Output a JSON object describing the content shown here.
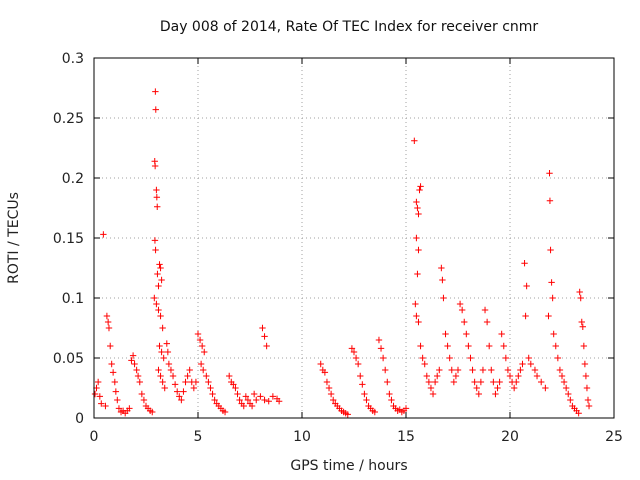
{
  "chart_data": {
    "type": "scatter",
    "title": "Day 008 of 2014, Rate Of TEC Index for receiver cnmr",
    "xlabel": "GPS time / hours",
    "ylabel": "ROTI / TECUs",
    "xlim": [
      0,
      25
    ],
    "ylim": [
      0,
      0.3
    ],
    "xticks": [
      0,
      5,
      10,
      15,
      20,
      25
    ],
    "xtick_labels": [
      "0",
      "5",
      "10",
      "15",
      "20",
      "25"
    ],
    "yticks": [
      0,
      0.05,
      0.1,
      0.15,
      0.2,
      0.25,
      0.3
    ],
    "ytick_labels": [
      "0",
      "0.05",
      "0.1",
      "0.15",
      "0.2",
      "0.25",
      "0.3"
    ],
    "grid": true,
    "marker": "+",
    "color": "#ff0000",
    "series": [
      {
        "name": "ROTI",
        "points": [
          [
            0.05,
            0.02
          ],
          [
            0.12,
            0.025
          ],
          [
            0.2,
            0.03
          ],
          [
            0.28,
            0.018
          ],
          [
            0.35,
            0.012
          ],
          [
            0.45,
            0.153
          ],
          [
            0.55,
            0.01
          ],
          [
            0.62,
            0.085
          ],
          [
            0.68,
            0.08
          ],
          [
            0.72,
            0.075
          ],
          [
            0.78,
            0.06
          ],
          [
            0.85,
            0.045
          ],
          [
            0.92,
            0.038
          ],
          [
            1.0,
            0.03
          ],
          [
            1.05,
            0.022
          ],
          [
            1.12,
            0.015
          ],
          [
            1.2,
            0.008
          ],
          [
            1.3,
            0.005
          ],
          [
            1.4,
            0.006
          ],
          [
            1.5,
            0.004
          ],
          [
            1.6,
            0.006
          ],
          [
            1.7,
            0.008
          ],
          [
            1.8,
            0.048
          ],
          [
            1.88,
            0.052
          ],
          [
            1.95,
            0.045
          ],
          [
            2.05,
            0.04
          ],
          [
            2.12,
            0.035
          ],
          [
            2.2,
            0.03
          ],
          [
            2.3,
            0.02
          ],
          [
            2.4,
            0.015
          ],
          [
            2.5,
            0.01
          ],
          [
            2.6,
            0.008
          ],
          [
            2.7,
            0.006
          ],
          [
            2.8,
            0.005
          ],
          [
            2.95,
            0.272
          ],
          [
            2.97,
            0.257
          ],
          [
            2.92,
            0.214
          ],
          [
            2.94,
            0.21
          ],
          [
            3.0,
            0.19
          ],
          [
            3.02,
            0.184
          ],
          [
            3.04,
            0.176
          ],
          [
            2.93,
            0.148
          ],
          [
            2.96,
            0.14
          ],
          [
            3.05,
            0.12
          ],
          [
            3.1,
            0.11
          ],
          [
            3.15,
            0.128
          ],
          [
            3.2,
            0.125
          ],
          [
            3.25,
            0.115
          ],
          [
            2.9,
            0.1
          ],
          [
            3.0,
            0.095
          ],
          [
            3.1,
            0.09
          ],
          [
            3.2,
            0.085
          ],
          [
            3.3,
            0.075
          ],
          [
            3.15,
            0.06
          ],
          [
            3.25,
            0.055
          ],
          [
            3.35,
            0.05
          ],
          [
            3.1,
            0.04
          ],
          [
            3.2,
            0.035
          ],
          [
            3.3,
            0.03
          ],
          [
            3.4,
            0.025
          ],
          [
            3.5,
            0.062
          ],
          [
            3.55,
            0.055
          ],
          [
            3.6,
            0.045
          ],
          [
            3.7,
            0.04
          ],
          [
            3.8,
            0.035
          ],
          [
            3.9,
            0.028
          ],
          [
            4.0,
            0.022
          ],
          [
            4.1,
            0.018
          ],
          [
            4.2,
            0.015
          ],
          [
            4.3,
            0.022
          ],
          [
            4.4,
            0.03
          ],
          [
            4.5,
            0.035
          ],
          [
            4.6,
            0.04
          ],
          [
            4.7,
            0.03
          ],
          [
            4.8,
            0.025
          ],
          [
            4.9,
            0.03
          ],
          [
            5.0,
            0.07
          ],
          [
            5.1,
            0.065
          ],
          [
            5.2,
            0.06
          ],
          [
            5.3,
            0.055
          ],
          [
            5.15,
            0.045
          ],
          [
            5.25,
            0.04
          ],
          [
            5.4,
            0.035
          ],
          [
            5.5,
            0.03
          ],
          [
            5.6,
            0.025
          ],
          [
            5.7,
            0.02
          ],
          [
            5.8,
            0.015
          ],
          [
            5.9,
            0.012
          ],
          [
            6.0,
            0.01
          ],
          [
            6.1,
            0.008
          ],
          [
            6.2,
            0.006
          ],
          [
            6.3,
            0.005
          ],
          [
            6.5,
            0.035
          ],
          [
            6.6,
            0.03
          ],
          [
            6.7,
            0.028
          ],
          [
            6.8,
            0.025
          ],
          [
            6.9,
            0.02
          ],
          [
            7.0,
            0.015
          ],
          [
            7.1,
            0.012
          ],
          [
            7.2,
            0.01
          ],
          [
            7.3,
            0.018
          ],
          [
            7.4,
            0.015
          ],
          [
            7.5,
            0.012
          ],
          [
            7.6,
            0.01
          ],
          [
            7.7,
            0.02
          ],
          [
            7.8,
            0.015
          ],
          [
            8.1,
            0.075
          ],
          [
            8.2,
            0.068
          ],
          [
            8.3,
            0.06
          ],
          [
            8.0,
            0.018
          ],
          [
            8.2,
            0.015
          ],
          [
            8.4,
            0.014
          ],
          [
            8.6,
            0.018
          ],
          [
            8.8,
            0.016
          ],
          [
            8.9,
            0.014
          ],
          [
            10.9,
            0.045
          ],
          [
            11.0,
            0.04
          ],
          [
            11.1,
            0.038
          ],
          [
            11.2,
            0.03
          ],
          [
            11.3,
            0.025
          ],
          [
            11.4,
            0.02
          ],
          [
            11.5,
            0.015
          ],
          [
            11.6,
            0.012
          ],
          [
            11.7,
            0.01
          ],
          [
            11.8,
            0.008
          ],
          [
            11.9,
            0.006
          ],
          [
            12.0,
            0.005
          ],
          [
            12.1,
            0.004
          ],
          [
            12.2,
            0.003
          ],
          [
            12.4,
            0.058
          ],
          [
            12.5,
            0.055
          ],
          [
            12.6,
            0.05
          ],
          [
            12.7,
            0.045
          ],
          [
            12.8,
            0.035
          ],
          [
            12.9,
            0.028
          ],
          [
            13.0,
            0.02
          ],
          [
            13.1,
            0.015
          ],
          [
            13.2,
            0.01
          ],
          [
            13.3,
            0.008
          ],
          [
            13.4,
            0.006
          ],
          [
            13.5,
            0.005
          ],
          [
            13.7,
            0.065
          ],
          [
            13.8,
            0.058
          ],
          [
            13.9,
            0.05
          ],
          [
            14.0,
            0.04
          ],
          [
            14.1,
            0.03
          ],
          [
            14.2,
            0.02
          ],
          [
            14.3,
            0.015
          ],
          [
            14.4,
            0.01
          ],
          [
            14.5,
            0.008
          ],
          [
            14.6,
            0.006
          ],
          [
            14.7,
            0.007
          ],
          [
            14.8,
            0.005
          ],
          [
            14.9,
            0.006
          ],
          [
            15.0,
            0.008
          ],
          [
            15.4,
            0.231
          ],
          [
            15.5,
            0.18
          ],
          [
            15.55,
            0.175
          ],
          [
            15.6,
            0.17
          ],
          [
            15.65,
            0.19
          ],
          [
            15.7,
            0.193
          ],
          [
            15.5,
            0.15
          ],
          [
            15.6,
            0.14
          ],
          [
            15.55,
            0.12
          ],
          [
            15.45,
            0.095
          ],
          [
            15.5,
            0.085
          ],
          [
            15.6,
            0.08
          ],
          [
            15.7,
            0.06
          ],
          [
            15.8,
            0.05
          ],
          [
            15.9,
            0.045
          ],
          [
            16.0,
            0.035
          ],
          [
            16.1,
            0.03
          ],
          [
            16.2,
            0.025
          ],
          [
            16.3,
            0.02
          ],
          [
            16.4,
            0.03
          ],
          [
            16.5,
            0.035
          ],
          [
            16.6,
            0.04
          ],
          [
            16.7,
            0.125
          ],
          [
            16.75,
            0.115
          ],
          [
            16.8,
            0.1
          ],
          [
            16.9,
            0.07
          ],
          [
            17.0,
            0.06
          ],
          [
            17.1,
            0.05
          ],
          [
            17.2,
            0.04
          ],
          [
            17.3,
            0.03
          ],
          [
            17.4,
            0.035
          ],
          [
            17.5,
            0.04
          ],
          [
            17.6,
            0.095
          ],
          [
            17.7,
            0.09
          ],
          [
            17.8,
            0.08
          ],
          [
            17.9,
            0.07
          ],
          [
            18.0,
            0.06
          ],
          [
            18.1,
            0.05
          ],
          [
            18.2,
            0.04
          ],
          [
            18.3,
            0.03
          ],
          [
            18.4,
            0.025
          ],
          [
            18.5,
            0.02
          ],
          [
            18.6,
            0.03
          ],
          [
            18.7,
            0.04
          ],
          [
            18.8,
            0.09
          ],
          [
            18.9,
            0.08
          ],
          [
            19.0,
            0.06
          ],
          [
            19.1,
            0.04
          ],
          [
            19.2,
            0.03
          ],
          [
            19.3,
            0.02
          ],
          [
            19.4,
            0.025
          ],
          [
            19.5,
            0.03
          ],
          [
            19.6,
            0.07
          ],
          [
            19.7,
            0.06
          ],
          [
            19.8,
            0.05
          ],
          [
            19.9,
            0.04
          ],
          [
            20.0,
            0.035
          ],
          [
            20.1,
            0.03
          ],
          [
            20.2,
            0.025
          ],
          [
            20.3,
            0.03
          ],
          [
            20.4,
            0.035
          ],
          [
            20.5,
            0.04
          ],
          [
            20.6,
            0.045
          ],
          [
            20.7,
            0.129
          ],
          [
            20.8,
            0.11
          ],
          [
            20.75,
            0.085
          ],
          [
            20.9,
            0.05
          ],
          [
            21.0,
            0.045
          ],
          [
            21.2,
            0.04
          ],
          [
            21.3,
            0.035
          ],
          [
            21.5,
            0.03
          ],
          [
            21.7,
            0.025
          ],
          [
            21.9,
            0.204
          ],
          [
            21.92,
            0.181
          ],
          [
            21.95,
            0.14
          ],
          [
            22.0,
            0.113
          ],
          [
            22.05,
            0.1
          ],
          [
            21.85,
            0.085
          ],
          [
            22.1,
            0.07
          ],
          [
            22.2,
            0.06
          ],
          [
            22.3,
            0.05
          ],
          [
            22.4,
            0.04
          ],
          [
            22.5,
            0.035
          ],
          [
            22.6,
            0.03
          ],
          [
            22.7,
            0.025
          ],
          [
            22.8,
            0.02
          ],
          [
            22.9,
            0.015
          ],
          [
            23.0,
            0.01
          ],
          [
            23.1,
            0.008
          ],
          [
            23.2,
            0.006
          ],
          [
            23.3,
            0.004
          ],
          [
            23.35,
            0.105
          ],
          [
            23.4,
            0.1
          ],
          [
            23.45,
            0.08
          ],
          [
            23.5,
            0.076
          ],
          [
            23.55,
            0.06
          ],
          [
            23.6,
            0.045
          ],
          [
            23.65,
            0.035
          ],
          [
            23.7,
            0.025
          ],
          [
            23.75,
            0.015
          ],
          [
            23.8,
            0.01
          ]
        ]
      }
    ]
  }
}
